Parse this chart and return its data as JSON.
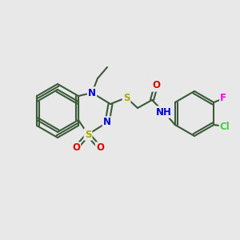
{
  "bg_color": "#e8e8e8",
  "bond_color": "#3a5a3a",
  "bond_lw": 1.5,
  "atom_colors": {
    "N": "#0000dd",
    "O": "#dd0000",
    "S": "#aaaa00",
    "Cl": "#44cc44",
    "F": "#ff00ff",
    "C": "#000000",
    "H": "#000000"
  },
  "font_size": 7.5,
  "bold_atoms": true
}
